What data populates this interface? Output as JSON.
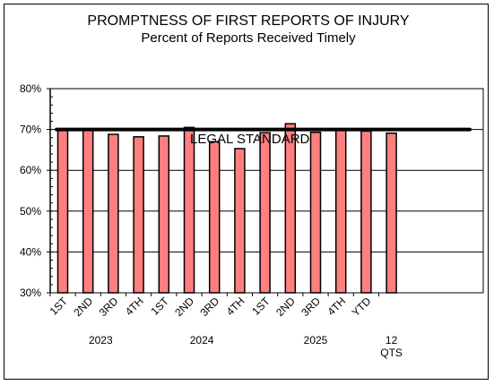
{
  "chart_data": {
    "type": "bar",
    "title": "PROMPTNESS OF FIRST REPORTS OF INJURY",
    "subtitle": "Percent of Reports Received Timely",
    "xlabel": "",
    "ylabel": "",
    "ylim": [
      30,
      80
    ],
    "yticks": [
      "80%",
      "70%",
      "60%",
      "50%",
      "40%",
      "30%"
    ],
    "categories": [
      "1ST",
      "2ND",
      "3RD",
      "4TH",
      "1ST",
      "2ND",
      "3RD",
      "4TH",
      "1ST",
      "2ND",
      "3RD",
      "4TH",
      "YTD",
      "12 QTS"
    ],
    "values": [
      70.0,
      69.8,
      68.8,
      68.2,
      68.4,
      70.5,
      67.0,
      65.3,
      69.2,
      71.4,
      69.3,
      69.9,
      69.6,
      69.1
    ],
    "year_groups": [
      {
        "label": "2023",
        "start": 0,
        "end": 3
      },
      {
        "label": "2024",
        "start": 4,
        "end": 7
      },
      {
        "label": "2025",
        "start": 8,
        "end": 12
      }
    ],
    "reference_line": {
      "label": "LEGAL STANDARD",
      "value": 70
    },
    "grid": true,
    "legend": "none",
    "bar_color": "#ff7f7f",
    "line_color": "#000000"
  }
}
